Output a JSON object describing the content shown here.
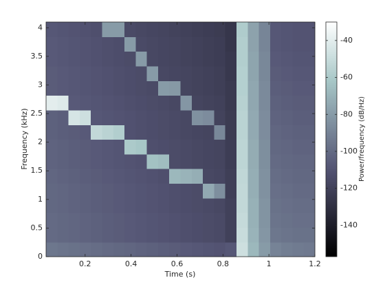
{
  "chart_data": {
    "type": "spectrogram",
    "xlabel": "Time (s)",
    "ylabel": "Frequency (kHz)",
    "colorbar_label": "Power/frequency (dB/Hz)",
    "colormap": "bone",
    "xlim": [
      0.03,
      1.2
    ],
    "xticks": [
      0.2,
      0.4,
      0.6,
      0.8,
      1,
      1.2
    ],
    "ylim": [
      0,
      4.1
    ],
    "yticks": [
      0,
      0.5,
      1,
      1.5,
      2,
      2.5,
      3,
      3.5,
      4
    ],
    "clim": [
      -157,
      -30
    ],
    "cticks": [
      -140,
      -120,
      -100,
      -80,
      -60,
      -40
    ],
    "z": [
      [
        -95,
        -96,
        -97,
        -98,
        -99,
        -100,
        -101,
        -102,
        -103,
        -104,
        -105,
        -106,
        -107,
        -108,
        -109,
        -110,
        -108,
        -48,
        -68,
        -80,
        -90,
        -92,
        -93,
        -94
      ],
      [
        -100,
        -101,
        -102,
        -103,
        -104,
        -105,
        -106,
        -107,
        -108,
        -109,
        -110,
        -111,
        -112,
        -113,
        -114,
        -115,
        -120,
        -50,
        -70,
        -82,
        -95,
        -96,
        -97,
        -97
      ],
      [
        -100,
        -101,
        -102,
        -103,
        -104,
        -105,
        -106,
        -107,
        -108,
        -109,
        -110,
        -111,
        -112,
        -113,
        -114,
        -115,
        -120,
        -51,
        -71,
        -83,
        -96,
        -97,
        -98,
        -98
      ],
      [
        -101,
        -102,
        -103,
        -104,
        -105,
        -106,
        -107,
        -108,
        -109,
        -110,
        -111,
        -112,
        -113,
        -114,
        -115,
        -116,
        -120,
        -52,
        -71,
        -83,
        -97,
        -98,
        -99,
        -99
      ],
      [
        -101,
        -102,
        -103,
        -104,
        -105,
        -106,
        -107,
        -108,
        -109,
        -110,
        -111,
        -112,
        -113,
        -114,
        -74,
        -85,
        -121,
        -52,
        -72,
        -84,
        -98,
        -99,
        -100,
        -100
      ],
      [
        -102,
        -103,
        -104,
        -105,
        -106,
        -107,
        -108,
        -109,
        -110,
        -111,
        -112,
        -68,
        -70,
        -72,
        -116,
        -117,
        -121,
        -53,
        -72,
        -84,
        -99,
        -100,
        -101,
        -101
      ],
      [
        -103,
        -104,
        -105,
        -106,
        -107,
        -108,
        -109,
        -110,
        -111,
        -64,
        -66,
        -114,
        -115,
        -116,
        -117,
        -118,
        -122,
        -54,
        -73,
        -85,
        -100,
        -101,
        -102,
        -102
      ],
      [
        -103,
        -104,
        -105,
        -106,
        -107,
        -108,
        -109,
        -60,
        -62,
        -112,
        -113,
        -114,
        -115,
        -116,
        -117,
        -118,
        -122,
        -54,
        -73,
        -85,
        -101,
        -102,
        -103,
        -103
      ],
      [
        -104,
        -105,
        -106,
        -107,
        -52,
        -55,
        -58,
        -111,
        -112,
        -113,
        -114,
        -115,
        -116,
        -117,
        -118,
        -88,
        -123,
        -55,
        -74,
        -86,
        -102,
        -103,
        -104,
        -104
      ],
      [
        -104,
        -105,
        -45,
        -48,
        -108,
        -109,
        -110,
        -111,
        -112,
        -113,
        -114,
        -115,
        -116,
        -84,
        -86,
        -119,
        -123,
        -55,
        -74,
        -86,
        -103,
        -104,
        -105,
        -105
      ],
      [
        -40,
        -42,
        -107,
        -108,
        -109,
        -110,
        -111,
        -112,
        -113,
        -114,
        -115,
        -116,
        -82,
        -118,
        -119,
        -120,
        -124,
        -56,
        -75,
        -87,
        -104,
        -105,
        -106,
        -106
      ],
      [
        -106,
        -107,
        -108,
        -109,
        -110,
        -111,
        -112,
        -113,
        -114,
        -115,
        -80,
        -81,
        -118,
        -119,
        -120,
        -121,
        -124,
        -57,
        -75,
        -87,
        -105,
        -106,
        -107,
        -107
      ],
      [
        -106,
        -107,
        -108,
        -109,
        -110,
        -111,
        -112,
        -113,
        -114,
        -80,
        -116,
        -117,
        -118,
        -119,
        -120,
        -121,
        -125,
        -57,
        -76,
        -88,
        -106,
        -107,
        -108,
        -108
      ],
      [
        -107,
        -108,
        -109,
        -110,
        -111,
        -112,
        -113,
        -114,
        -80,
        -116,
        -117,
        -118,
        -119,
        -120,
        -121,
        -122,
        -125,
        -58,
        -76,
        -88,
        -107,
        -108,
        -109,
        -109
      ],
      [
        -107,
        -108,
        -109,
        -110,
        -111,
        -112,
        -113,
        -80,
        -115,
        -116,
        -117,
        -118,
        -119,
        -120,
        -121,
        -122,
        -126,
        -58,
        -77,
        -89,
        -108,
        -109,
        -110,
        -110
      ],
      [
        -108,
        -109,
        -110,
        -111,
        -112,
        -80,
        -80,
        -115,
        -116,
        -117,
        -118,
        -119,
        -120,
        -121,
        -122,
        -123,
        -126,
        -59,
        -77,
        -89,
        -108,
        -109,
        -110,
        -110
      ]
    ]
  }
}
